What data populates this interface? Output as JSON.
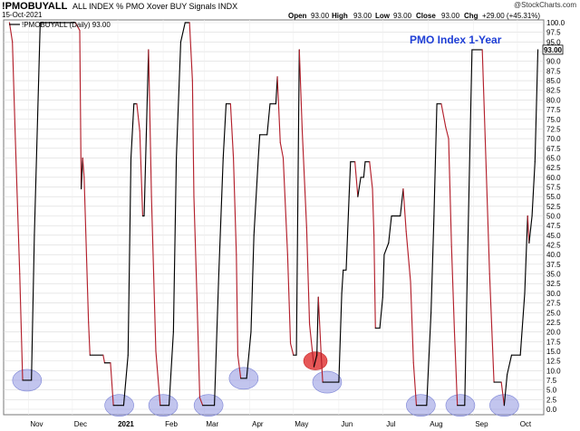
{
  "header": {
    "symbol": "!PMOBUYALL",
    "description": "ALL INDEX % PMO Xover BUY Signals INDX",
    "date": "15-Oct-2021",
    "watermark": "@StockCharts.com",
    "open_label": "Open",
    "open": "93.00",
    "high_label": "High",
    "high": "93.00",
    "low_label": "Low",
    "low": "93.00",
    "close_label": "Close",
    "close": "93.00",
    "chg_label": "Chg",
    "chg": "+29.00 (+45.31%)"
  },
  "legend": {
    "text": "!PMOBUYALL (Daily) 93.00"
  },
  "annotation": {
    "text": "PMO Index 1-Year",
    "color": "#1f3fd6"
  },
  "last_value": "93.00",
  "colors": {
    "up": "#000000",
    "down": "#b3202c",
    "ellipse_blue": "#8f96e0",
    "ellipse_red": "#e23a3a",
    "grid": "#d9d9d9"
  },
  "chart_data": {
    "type": "line",
    "title": "PMO Index 1-Year",
    "xlabel": "",
    "ylabel": "",
    "x_ticks": [
      "Nov",
      "Dec",
      "2021",
      "Feb",
      "Mar",
      "Apr",
      "May",
      "Jun",
      "Jul",
      "Aug",
      "Sep",
      "Oct"
    ],
    "y_ticks": [
      0.0,
      2.5,
      5.0,
      7.5,
      10.0,
      12.5,
      15.0,
      17.5,
      20.0,
      22.5,
      25.0,
      27.5,
      30.0,
      32.5,
      35.0,
      37.5,
      40.0,
      42.5,
      45.0,
      47.5,
      50.0,
      52.5,
      55.0,
      57.5,
      60.0,
      62.5,
      65.0,
      67.5,
      70.0,
      72.5,
      75.0,
      77.5,
      80.0,
      82.5,
      85.0,
      87.5,
      90.0,
      92.5,
      95.0,
      97.5,
      100.0
    ],
    "ylim": [
      0,
      100
    ],
    "grid": true,
    "series": [
      {
        "name": "!PMOBUYALL (Daily)",
        "points": [
          {
            "x": "2020-10-19",
            "y": 100.0
          },
          {
            "x": "2020-10-21",
            "y": 95.0
          },
          {
            "x": "2020-10-23",
            "y": 70.0
          },
          {
            "x": "2020-10-26",
            "y": 35.0
          },
          {
            "x": "2020-10-28",
            "y": 7.5
          },
          {
            "x": "2020-11-03",
            "y": 7.5
          },
          {
            "x": "2020-11-05",
            "y": 45.0
          },
          {
            "x": "2020-11-09",
            "y": 100.0
          },
          {
            "x": "2020-12-03",
            "y": 100.0
          },
          {
            "x": "2020-12-06",
            "y": 98.0
          },
          {
            "x": "2020-12-07",
            "y": 57.0
          },
          {
            "x": "2020-12-08",
            "y": 65.0
          },
          {
            "x": "2020-12-09",
            "y": 60.0
          },
          {
            "x": "2020-12-12",
            "y": 22.5
          },
          {
            "x": "2020-12-13",
            "y": 14.0
          },
          {
            "x": "2020-12-22",
            "y": 14.0
          },
          {
            "x": "2020-12-23",
            "y": 12.0
          },
          {
            "x": "2020-12-27",
            "y": 12.0
          },
          {
            "x": "2020-12-29",
            "y": 1.0
          },
          {
            "x": "2021-01-05",
            "y": 1.0
          },
          {
            "x": "2021-01-08",
            "y": 14.0
          },
          {
            "x": "2021-01-10",
            "y": 65.0
          },
          {
            "x": "2021-01-12",
            "y": 79.0
          },
          {
            "x": "2021-01-14",
            "y": 79.0
          },
          {
            "x": "2021-01-16",
            "y": 72.0
          },
          {
            "x": "2021-01-18",
            "y": 50.0
          },
          {
            "x": "2021-01-19",
            "y": 50.0
          },
          {
            "x": "2021-01-22",
            "y": 93.0
          },
          {
            "x": "2021-01-24",
            "y": 55.0
          },
          {
            "x": "2021-01-27",
            "y": 15.0
          },
          {
            "x": "2021-01-30",
            "y": 1.0
          },
          {
            "x": "2021-02-05",
            "y": 1.0
          },
          {
            "x": "2021-02-08",
            "y": 20.0
          },
          {
            "x": "2021-02-10",
            "y": 65.0
          },
          {
            "x": "2021-02-13",
            "y": 95.0
          },
          {
            "x": "2021-02-16",
            "y": 100.0
          },
          {
            "x": "2021-02-19",
            "y": 100.0
          },
          {
            "x": "2021-02-21",
            "y": 85.0
          },
          {
            "x": "2021-02-22",
            "y": 55.0
          },
          {
            "x": "2021-02-24",
            "y": 30.0
          },
          {
            "x": "2021-02-26",
            "y": 3.0
          },
          {
            "x": "2021-02-28",
            "y": 1.0
          },
          {
            "x": "2021-03-08",
            "y": 1.0
          },
          {
            "x": "2021-03-11",
            "y": 35.0
          },
          {
            "x": "2021-03-14",
            "y": 65.0
          },
          {
            "x": "2021-03-16",
            "y": 79.0
          },
          {
            "x": "2021-03-19",
            "y": 79.0
          },
          {
            "x": "2021-03-21",
            "y": 65.0
          },
          {
            "x": "2021-03-23",
            "y": 40.0
          },
          {
            "x": "2021-03-24",
            "y": 14.0
          },
          {
            "x": "2021-03-26",
            "y": 8.0
          },
          {
            "x": "2021-03-30",
            "y": 8.0
          },
          {
            "x": "2021-04-02",
            "y": 20.0
          },
          {
            "x": "2021-04-04",
            "y": 45.0
          },
          {
            "x": "2021-04-07",
            "y": 65.0
          },
          {
            "x": "2021-04-08",
            "y": 71.0
          },
          {
            "x": "2021-04-13",
            "y": 71.0
          },
          {
            "x": "2021-04-15",
            "y": 79.0
          },
          {
            "x": "2021-04-19",
            "y": 79.0
          },
          {
            "x": "2021-04-20",
            "y": 86.0
          },
          {
            "x": "2021-04-22",
            "y": 69.0
          },
          {
            "x": "2021-04-24",
            "y": 65.0
          },
          {
            "x": "2021-04-27",
            "y": 40.0
          },
          {
            "x": "2021-04-29",
            "y": 17.0
          },
          {
            "x": "2021-05-01",
            "y": 14.0
          },
          {
            "x": "2021-05-03",
            "y": 14.0
          },
          {
            "x": "2021-05-05",
            "y": 93.0
          },
          {
            "x": "2021-05-07",
            "y": 72.0
          },
          {
            "x": "2021-05-10",
            "y": 47.0
          },
          {
            "x": "2021-05-12",
            "y": 22.0
          },
          {
            "x": "2021-05-15",
            "y": 11.0
          },
          {
            "x": "2021-05-17",
            "y": 14.0
          },
          {
            "x": "2021-05-18",
            "y": 29.0
          },
          {
            "x": "2021-05-20",
            "y": 13.5
          },
          {
            "x": "2021-05-21",
            "y": 7.0
          },
          {
            "x": "2021-06-01",
            "y": 7.0
          },
          {
            "x": "2021-06-03",
            "y": 30.0
          },
          {
            "x": "2021-06-04",
            "y": 36.0
          },
          {
            "x": "2021-06-06",
            "y": 36.0
          },
          {
            "x": "2021-06-08",
            "y": 55.0
          },
          {
            "x": "2021-06-09",
            "y": 64.0
          },
          {
            "x": "2021-06-12",
            "y": 64.0
          },
          {
            "x": "2021-06-14",
            "y": 55.0
          },
          {
            "x": "2021-06-16",
            "y": 60.0
          },
          {
            "x": "2021-06-18",
            "y": 60.0
          },
          {
            "x": "2021-06-19",
            "y": 64.0
          },
          {
            "x": "2021-06-22",
            "y": 64.0
          },
          {
            "x": "2021-06-24",
            "y": 57.0
          },
          {
            "x": "2021-06-25",
            "y": 45.0
          },
          {
            "x": "2021-06-26",
            "y": 21.0
          },
          {
            "x": "2021-06-29",
            "y": 21.0
          },
          {
            "x": "2021-07-01",
            "y": 29.0
          },
          {
            "x": "2021-07-02",
            "y": 40.0
          },
          {
            "x": "2021-07-05",
            "y": 43.0
          },
          {
            "x": "2021-07-07",
            "y": 50.0
          },
          {
            "x": "2021-07-13",
            "y": 50.0
          },
          {
            "x": "2021-07-15",
            "y": 57.0
          },
          {
            "x": "2021-07-17",
            "y": 46.0
          },
          {
            "x": "2021-07-20",
            "y": 33.0
          },
          {
            "x": "2021-07-22",
            "y": 12.0
          },
          {
            "x": "2021-07-24",
            "y": 1.0
          },
          {
            "x": "2021-07-31",
            "y": 1.0
          },
          {
            "x": "2021-08-03",
            "y": 25.0
          },
          {
            "x": "2021-08-05",
            "y": 50.0
          },
          {
            "x": "2021-08-07",
            "y": 79.0
          },
          {
            "x": "2021-08-10",
            "y": 79.0
          },
          {
            "x": "2021-08-13",
            "y": 73.0
          },
          {
            "x": "2021-08-15",
            "y": 70.0
          },
          {
            "x": "2021-08-17",
            "y": 42.0
          },
          {
            "x": "2021-08-19",
            "y": 20.0
          },
          {
            "x": "2021-08-21",
            "y": 1.0
          },
          {
            "x": "2021-08-26",
            "y": 1.0
          },
          {
            "x": "2021-08-28",
            "y": 40.0
          },
          {
            "x": "2021-08-31",
            "y": 93.0
          },
          {
            "x": "2021-09-07",
            "y": 93.0
          },
          {
            "x": "2021-09-09",
            "y": 70.0
          },
          {
            "x": "2021-09-12",
            "y": 35.0
          },
          {
            "x": "2021-09-15",
            "y": 7.0
          },
          {
            "x": "2021-09-20",
            "y": 7.0
          },
          {
            "x": "2021-09-22",
            "y": 1.0
          },
          {
            "x": "2021-09-24",
            "y": 9.0
          },
          {
            "x": "2021-09-27",
            "y": 14.0
          },
          {
            "x": "2021-10-03",
            "y": 14.0
          },
          {
            "x": "2021-10-06",
            "y": 30.0
          },
          {
            "x": "2021-10-08",
            "y": 50.0
          },
          {
            "x": "2021-10-09",
            "y": 43.0
          },
          {
            "x": "2021-10-11",
            "y": 50.0
          },
          {
            "x": "2021-10-13",
            "y": 64.0
          },
          {
            "x": "2021-10-15",
            "y": 93.0
          }
        ]
      }
    ],
    "highlights": [
      {
        "x": "2020-10-31",
        "y": 7.5,
        "color": "blue"
      },
      {
        "x": "2021-01-02",
        "y": 1.0,
        "color": "blue"
      },
      {
        "x": "2021-02-01",
        "y": 1.0,
        "color": "blue"
      },
      {
        "x": "2021-03-04",
        "y": 1.0,
        "color": "blue"
      },
      {
        "x": "2021-03-28",
        "y": 8.0,
        "color": "blue"
      },
      {
        "x": "2021-05-24",
        "y": 7.0,
        "color": "blue"
      },
      {
        "x": "2021-07-27",
        "y": 1.0,
        "color": "blue"
      },
      {
        "x": "2021-08-23",
        "y": 1.0,
        "color": "blue"
      },
      {
        "x": "2021-09-22",
        "y": 1.0,
        "color": "blue"
      },
      {
        "x": "2021-05-16",
        "y": 12.5,
        "color": "red"
      }
    ]
  }
}
